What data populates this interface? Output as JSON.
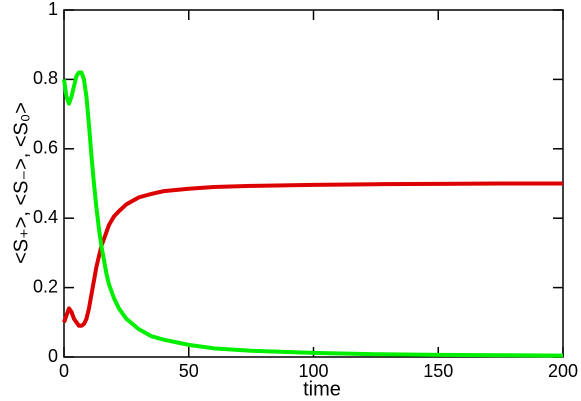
{
  "chart_data": {
    "type": "line",
    "xlabel": "time",
    "ylabel": "<S₊>, <S₋>, <S₀>",
    "x": [
      0,
      1,
      2,
      3,
      4,
      5,
      6,
      7,
      8,
      9,
      10,
      11,
      12,
      13,
      14,
      15,
      16,
      17,
      18,
      20,
      22,
      25,
      30,
      35,
      40,
      50,
      60,
      75,
      100,
      125,
      150,
      175,
      200
    ],
    "series": [
      {
        "color": "#dd0000",
        "values": [
          0.1,
          0.12,
          0.14,
          0.13,
          0.11,
          0.1,
          0.09,
          0.09,
          0.095,
          0.11,
          0.14,
          0.18,
          0.22,
          0.26,
          0.29,
          0.32,
          0.34,
          0.36,
          0.38,
          0.405,
          0.42,
          0.44,
          0.46,
          0.47,
          0.478,
          0.485,
          0.49,
          0.493,
          0.496,
          0.498,
          0.499,
          0.5,
          0.5
        ]
      },
      {
        "color": "#00ee00",
        "values": [
          0.8,
          0.75,
          0.73,
          0.75,
          0.78,
          0.81,
          0.82,
          0.82,
          0.8,
          0.75,
          0.67,
          0.58,
          0.5,
          0.43,
          0.37,
          0.32,
          0.28,
          0.24,
          0.21,
          0.17,
          0.14,
          0.11,
          0.08,
          0.06,
          0.05,
          0.035,
          0.025,
          0.018,
          0.012,
          0.008,
          0.006,
          0.005,
          0.004
        ]
      }
    ],
    "xlim": [
      0,
      200
    ],
    "xticks": [
      0,
      50,
      100,
      150,
      200
    ],
    "ylim": [
      0,
      1
    ],
    "yticks": [
      0,
      0.2,
      0.4,
      0.6,
      0.8,
      1
    ],
    "grid": false
  }
}
